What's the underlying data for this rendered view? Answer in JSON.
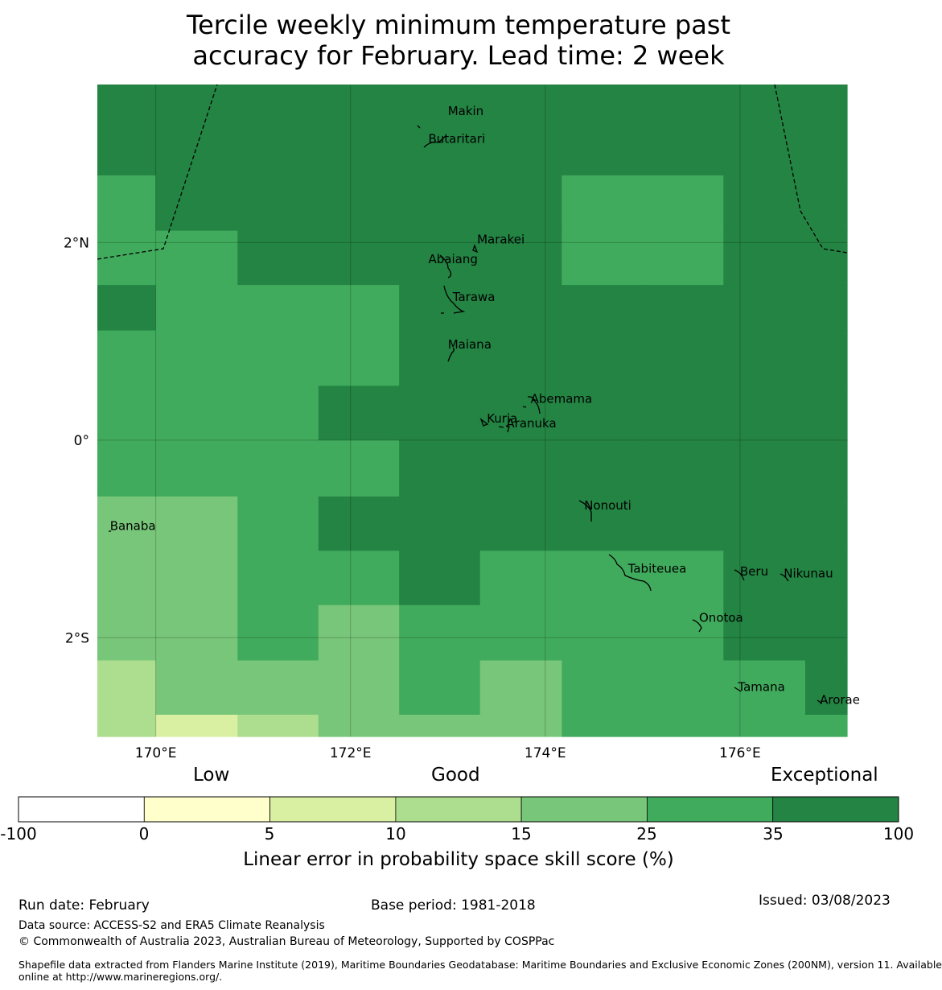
{
  "title": {
    "line1": "Tercile weekly minimum temperature past",
    "line2": "accuracy for February. Lead time: 2 week"
  },
  "map": {
    "lon_range": [
      169.4,
      177.1
    ],
    "lat_range": [
      -3.0,
      3.6
    ],
    "lon_ticks": [
      {
        "value": 170,
        "label": "170°E"
      },
      {
        "value": 172,
        "label": "172°E"
      },
      {
        "value": 174,
        "label": "174°E"
      },
      {
        "value": 176,
        "label": "176°E"
      }
    ],
    "lat_ticks": [
      {
        "value": 2,
        "label": "2°N"
      },
      {
        "value": 0,
        "label": "0°"
      },
      {
        "value": -2,
        "label": "2°S"
      }
    ],
    "grid_lon_edges": [
      169.4,
      170.0,
      170.84,
      171.67,
      172.5,
      173.33,
      174.17,
      175.0,
      175.83,
      176.67,
      177.1
    ],
    "grid_lat_edges": [
      3.6,
      2.68,
      2.12,
      1.57,
      1.11,
      0.55,
      0.0,
      -0.57,
      -1.12,
      -1.67,
      -2.23,
      -2.78,
      -3.0
    ],
    "skill_classes": [
      [
        6,
        6,
        6,
        6,
        6,
        6,
        6,
        6,
        6,
        6
      ],
      [
        5,
        6,
        6,
        6,
        6,
        6,
        5,
        5,
        6,
        6
      ],
      [
        5,
        5,
        6,
        6,
        6,
        6,
        5,
        5,
        6,
        6
      ],
      [
        6,
        5,
        5,
        5,
        6,
        6,
        6,
        6,
        6,
        6
      ],
      [
        5,
        5,
        5,
        5,
        6,
        6,
        6,
        6,
        6,
        6
      ],
      [
        5,
        5,
        5,
        6,
        6,
        6,
        6,
        6,
        6,
        6
      ],
      [
        5,
        5,
        5,
        5,
        6,
        6,
        6,
        6,
        6,
        6
      ],
      [
        4,
        4,
        5,
        6,
        6,
        6,
        6,
        6,
        6,
        6
      ],
      [
        4,
        4,
        5,
        5,
        6,
        5,
        5,
        5,
        6,
        6
      ],
      [
        4,
        4,
        5,
        4,
        5,
        5,
        5,
        5,
        6,
        6
      ],
      [
        3,
        4,
        4,
        4,
        5,
        4,
        5,
        5,
        5,
        6
      ],
      [
        3,
        2,
        3,
        4,
        4,
        4,
        5,
        5,
        5,
        5
      ]
    ],
    "places": [
      {
        "name": "Makin",
        "lon": 173.0,
        "lat": 3.33
      },
      {
        "name": "Butaritari",
        "lon": 172.8,
        "lat": 3.05
      },
      {
        "name": "Marakei",
        "lon": 173.3,
        "lat": 2.03
      },
      {
        "name": "Abaiang",
        "lon": 172.8,
        "lat": 1.83
      },
      {
        "name": "Tarawa",
        "lon": 173.05,
        "lat": 1.45
      },
      {
        "name": "Maiana",
        "lon": 173.0,
        "lat": 0.97
      },
      {
        "name": "Abemama",
        "lon": 173.85,
        "lat": 0.42
      },
      {
        "name": "Kuria",
        "lon": 173.4,
        "lat": 0.22
      },
      {
        "name": "Aranuka",
        "lon": 173.6,
        "lat": 0.17
      },
      {
        "name": "Nonouti",
        "lon": 174.4,
        "lat": -0.66
      },
      {
        "name": "Banaba",
        "lon": 169.53,
        "lat": -0.87
      },
      {
        "name": "Tabiteuea",
        "lon": 174.85,
        "lat": -1.3
      },
      {
        "name": "Beru",
        "lon": 176.0,
        "lat": -1.33
      },
      {
        "name": "Nikunau",
        "lon": 176.45,
        "lat": -1.35
      },
      {
        "name": "Onotoa",
        "lon": 175.58,
        "lat": -1.8
      },
      {
        "name": "Tamana",
        "lon": 175.98,
        "lat": -2.5
      },
      {
        "name": "Arorae",
        "lon": 176.82,
        "lat": -2.63
      }
    ]
  },
  "legend": {
    "categories": [
      {
        "label": "Low",
        "pos": "left"
      },
      {
        "label": "Good",
        "pos": "center"
      },
      {
        "label": "Exceptional",
        "pos": "right"
      }
    ],
    "bins": [
      {
        "from": "-100",
        "to": "0",
        "color": "#ffffff"
      },
      {
        "from": "0",
        "to": "5",
        "color": "#ffffcc"
      },
      {
        "from": "5",
        "to": "10",
        "color": "#d9f0a3"
      },
      {
        "from": "10",
        "to": "15",
        "color": "#addd8e"
      },
      {
        "from": "15",
        "to": "25",
        "color": "#78c679"
      },
      {
        "from": "25",
        "to": "35",
        "color": "#41ab5d"
      },
      {
        "from": "35",
        "to": "100",
        "color": "#238443"
      }
    ],
    "tick_labels": [
      "-100",
      "0",
      "5",
      "10",
      "15",
      "25",
      "35",
      "100"
    ],
    "title": "Linear error in probability space skill score (%)"
  },
  "footer": {
    "run_date": "Run date: February",
    "base_period": "Base period: 1981-2018",
    "issued": "Issued: 03/08/2023",
    "data_source": "Data source: ACCESS-S2 and ERA5 Climate Reanalysis",
    "copyright": "© Commonwealth of Australia 2023, Australian Bureau of Meteorology, Supported by COSPPac",
    "shapefile_line1": "Shapefile data extracted from Flanders Marine Institute (2019), Maritime Boundaries Geodatabase: Maritime Boundaries and Exclusive Economic Zones (200NM), version 11. Available",
    "shapefile_line2": "online at http://www.marineregions.org/."
  }
}
